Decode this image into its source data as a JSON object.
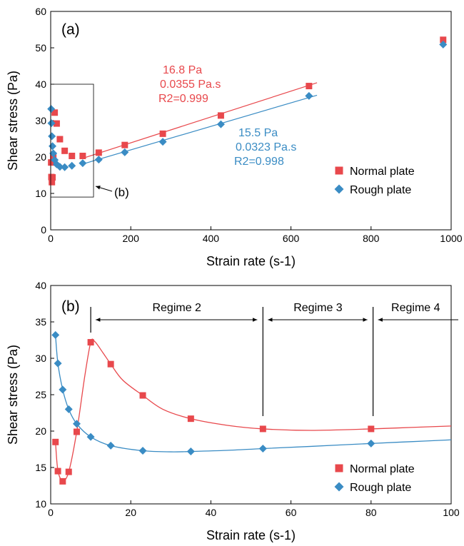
{
  "colors": {
    "normal": "#e8484c",
    "rough": "#3a8cc4",
    "axis": "#000000"
  },
  "chart_data": [
    {
      "type": "scatter",
      "panel_label": "(a)",
      "xlabel": "Strain rate (s-1)",
      "ylabel": "Shear stress (Pa)",
      "xlim": [
        0,
        1000
      ],
      "ylim": [
        0,
        60
      ],
      "xticks": [
        0,
        200,
        400,
        600,
        800,
        1000
      ],
      "yticks": [
        0,
        10,
        20,
        30,
        40,
        50,
        60
      ],
      "legend": {
        "placement": "right",
        "entries": [
          "Normal plate",
          "Rough plate"
        ]
      },
      "series": [
        {
          "name": "Normal plate",
          "marker": "square",
          "x": [
            1.2,
            1.8,
            3.0,
            4.5,
            6.5,
            10,
            15,
            23,
            35,
            53,
            80,
            120,
            185,
            280,
            425,
            645,
            980
          ],
          "y": [
            18.5,
            14.5,
            13.1,
            14.4,
            19.9,
            32.2,
            29.2,
            24.9,
            21.7,
            20.3,
            20.3,
            21.2,
            23.3,
            26.4,
            31.4,
            39.5,
            52.2
          ]
        },
        {
          "name": "Rough plate",
          "marker": "diamond",
          "x": [
            1.2,
            1.8,
            3.0,
            4.5,
            6.5,
            10,
            15,
            23,
            35,
            53,
            80,
            120,
            185,
            280,
            425,
            645,
            980
          ],
          "y": [
            33.2,
            29.3,
            25.7,
            23.0,
            21.0,
            19.2,
            18.0,
            17.3,
            17.2,
            17.6,
            18.3,
            19.3,
            21.3,
            24.2,
            29.0,
            36.8,
            50.9
          ]
        }
      ],
      "fits": [
        {
          "series": "Normal plate",
          "intercept": 16.8,
          "slope": 0.0355,
          "x": [
            80,
            665
          ],
          "labels": [
            "16.8 Pa",
            "0.0355 Pa.s",
            "R2=0.999"
          ]
        },
        {
          "series": "Rough plate",
          "intercept": 15.5,
          "slope": 0.0323,
          "x": [
            80,
            665
          ],
          "labels": [
            "15.5 Pa",
            "0.0323 Pa.s",
            "R2=0.998"
          ]
        }
      ],
      "inset_box": {
        "x": [
          0,
          107
        ],
        "y": [
          9,
          40
        ],
        "label": "(b)"
      }
    },
    {
      "type": "line",
      "panel_label": "(b)",
      "xlabel": "Strain rate (s-1)",
      "ylabel": "Shear stress (Pa)",
      "xlim": [
        0,
        100
      ],
      "ylim": [
        10,
        40
      ],
      "xticks": [
        0,
        20,
        40,
        60,
        80,
        100
      ],
      "yticks": [
        10,
        15,
        20,
        25,
        30,
        35,
        40
      ],
      "legend": {
        "placement": "bottom-right",
        "entries": [
          "Normal plate",
          "Rough plate"
        ]
      },
      "series": [
        {
          "name": "Normal plate",
          "marker": "square",
          "x": [
            1.2,
            1.8,
            3.0,
            4.5,
            6.5,
            10,
            15,
            23,
            35,
            53,
            80
          ],
          "y": [
            18.5,
            14.5,
            13.1,
            14.4,
            19.9,
            32.2,
            29.2,
            24.9,
            21.7,
            20.3,
            20.3
          ],
          "curve_x": [
            1.2,
            1.8,
            3.0,
            4.5,
            6.5,
            8.5,
            10,
            11,
            13,
            15,
            18,
            23,
            28,
            35,
            44,
            53,
            65,
            80,
            90,
            100
          ],
          "curve_y": [
            18.5,
            14.6,
            13.2,
            14.4,
            19.9,
            27.5,
            32.2,
            32.3,
            30.8,
            29.2,
            27.0,
            24.9,
            23.0,
            21.7,
            20.8,
            20.3,
            20.1,
            20.3,
            20.5,
            20.7
          ]
        },
        {
          "name": "Rough plate",
          "marker": "diamond",
          "x": [
            1.2,
            1.8,
            3.0,
            4.5,
            6.5,
            10,
            15,
            23,
            35,
            53,
            80
          ],
          "y": [
            33.2,
            29.3,
            25.7,
            23.0,
            21.0,
            19.2,
            18.0,
            17.3,
            17.2,
            17.6,
            18.3
          ],
          "curve_x": [
            1.2,
            1.8,
            3.0,
            4.5,
            6.5,
            10,
            15,
            23,
            30,
            35,
            44,
            53,
            65,
            80,
            90,
            100
          ],
          "curve_y": [
            33.2,
            29.3,
            25.7,
            23.0,
            21.0,
            19.2,
            18.0,
            17.3,
            17.15,
            17.2,
            17.35,
            17.6,
            17.9,
            18.3,
            18.55,
            18.8
          ]
        }
      ],
      "regimes": [
        {
          "label": "Regime 2",
          "x": [
            10,
            53
          ]
        },
        {
          "label": "Regime 3",
          "x": [
            53,
            80.5
          ]
        },
        {
          "label": "Regime 4",
          "x": [
            80.5,
            100
          ]
        }
      ],
      "regime_dividers": [
        10,
        53,
        80.5
      ]
    }
  ]
}
